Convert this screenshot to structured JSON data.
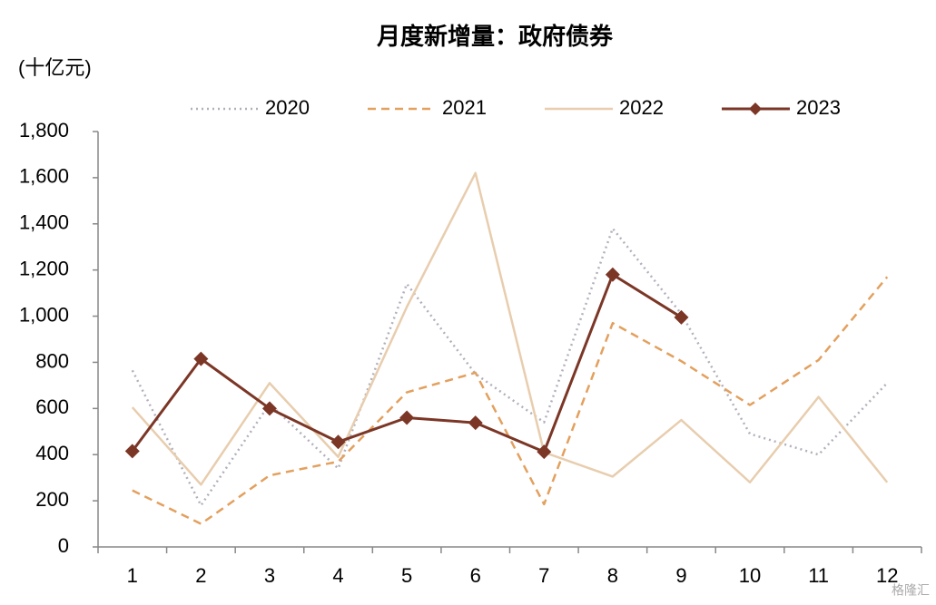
{
  "chart_data": {
    "type": "line",
    "title": "月度新增量：政府债券",
    "y_label": "(十亿元)",
    "watermark": "格隆汇",
    "categories": [
      "1",
      "2",
      "3",
      "4",
      "5",
      "6",
      "7",
      "8",
      "9",
      "10",
      "11",
      "12"
    ],
    "series": [
      {
        "name": "2020",
        "color": "#b0b0bc",
        "style": "dotted",
        "values": [
          765,
          180,
          620,
          340,
          1140,
          750,
          540,
          1380,
          1010,
          490,
          400,
          710
        ]
      },
      {
        "name": "2021",
        "color": "#e3a05e",
        "style": "dashed",
        "values": [
          245,
          100,
          310,
          370,
          670,
          755,
          185,
          970,
          805,
          615,
          810,
          1170
        ]
      },
      {
        "name": "2022",
        "color": "#e8cdae",
        "style": "solid",
        "values": [
          605,
          270,
          710,
          390,
          1040,
          1620,
          410,
          305,
          550,
          280,
          650,
          280
        ]
      },
      {
        "name": "2023",
        "color": "#7b3626",
        "style": "solid",
        "marker": "diamond",
        "values": [
          415,
          815,
          600,
          455,
          560,
          538,
          412,
          1180,
          995,
          null,
          null,
          null
        ]
      }
    ],
    "ylim": [
      0,
      1800
    ],
    "yticks": [
      0,
      200,
      400,
      600,
      800,
      {
        "value": 1000,
        "label": "1,000"
      },
      {
        "value": 1200,
        "label": "1,200"
      },
      {
        "value": 1400,
        "label": "1,400"
      },
      {
        "value": 1600,
        "label": "1,600"
      },
      {
        "value": 1800,
        "label": "1,800"
      }
    ],
    "grid": false,
    "legend": "top"
  }
}
